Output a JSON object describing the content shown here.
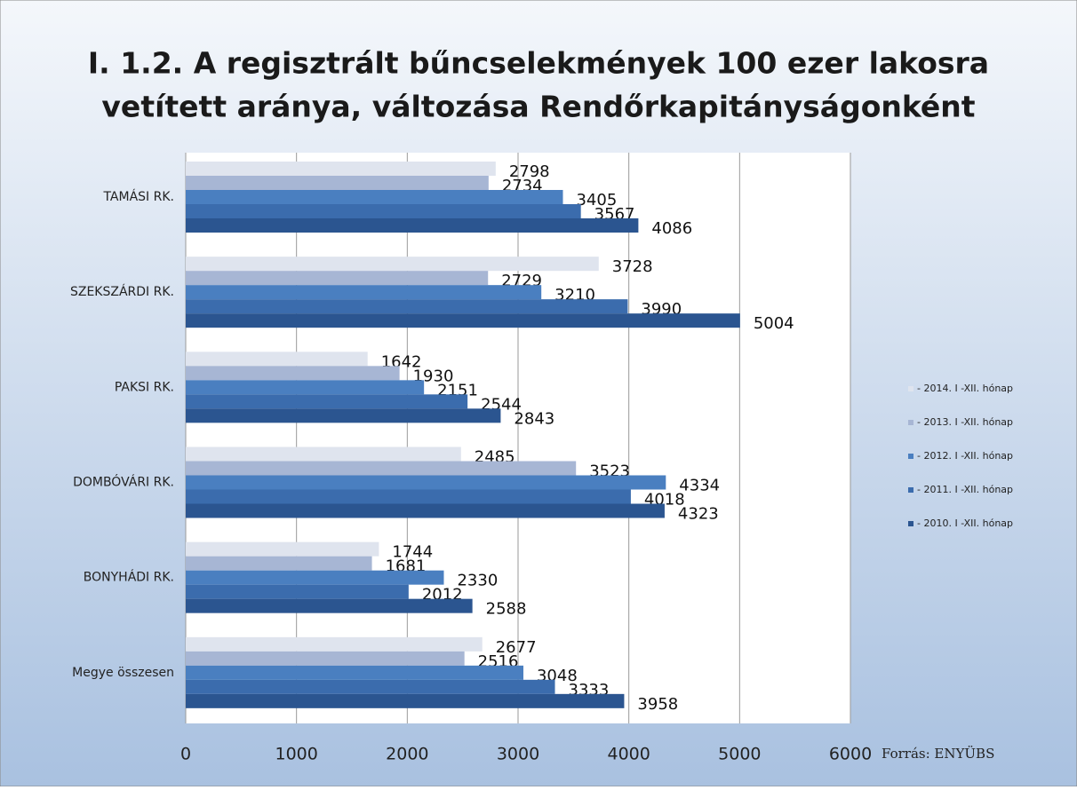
{
  "chart_data": {
    "type": "bar",
    "orientation": "horizontal",
    "title_lines": [
      "I. 1.2. A regisztrált bűncselekmények 100 ezer lakosra",
      "vetített aránya, változása Rendőrkapitányságonként"
    ],
    "categories": [
      "TAMÁSI RK.",
      "SZEKSZÁRDI RK.",
      "PAKSI RK.",
      "DOMBÓVÁRI RK.",
      "BONYHÁDI RK.",
      "Megye összesen"
    ],
    "series": [
      {
        "name": "- 2014. I -XII. hónap",
        "color": "#dfe4ee",
        "values": [
          2798,
          3728,
          1642,
          2485,
          1744,
          2677
        ]
      },
      {
        "name": "- 2013. I -XII. hónap",
        "color": "#a7b6d4",
        "values": [
          2734,
          2729,
          1930,
          3523,
          1681,
          2516
        ]
      },
      {
        "name": "- 2012. I -XII. hónap",
        "color": "#4a7fc0",
        "values": [
          3405,
          3210,
          2151,
          4334,
          2330,
          3048
        ]
      },
      {
        "name": "- 2011. I -XII. hónap",
        "color": "#3b6cad",
        "values": [
          3567,
          3990,
          2544,
          4018,
          2012,
          3333
        ]
      },
      {
        "name": "- 2010. I -XII. hónap",
        "color": "#2b5590",
        "values": [
          4086,
          5004,
          2843,
          4323,
          2588,
          3958
        ]
      }
    ],
    "xlim": [
      0,
      6000
    ],
    "xticks": [
      0,
      1000,
      2000,
      3000,
      4000,
      5000,
      6000
    ],
    "grid": true,
    "source": "Forrás: ENYÜBS"
  }
}
